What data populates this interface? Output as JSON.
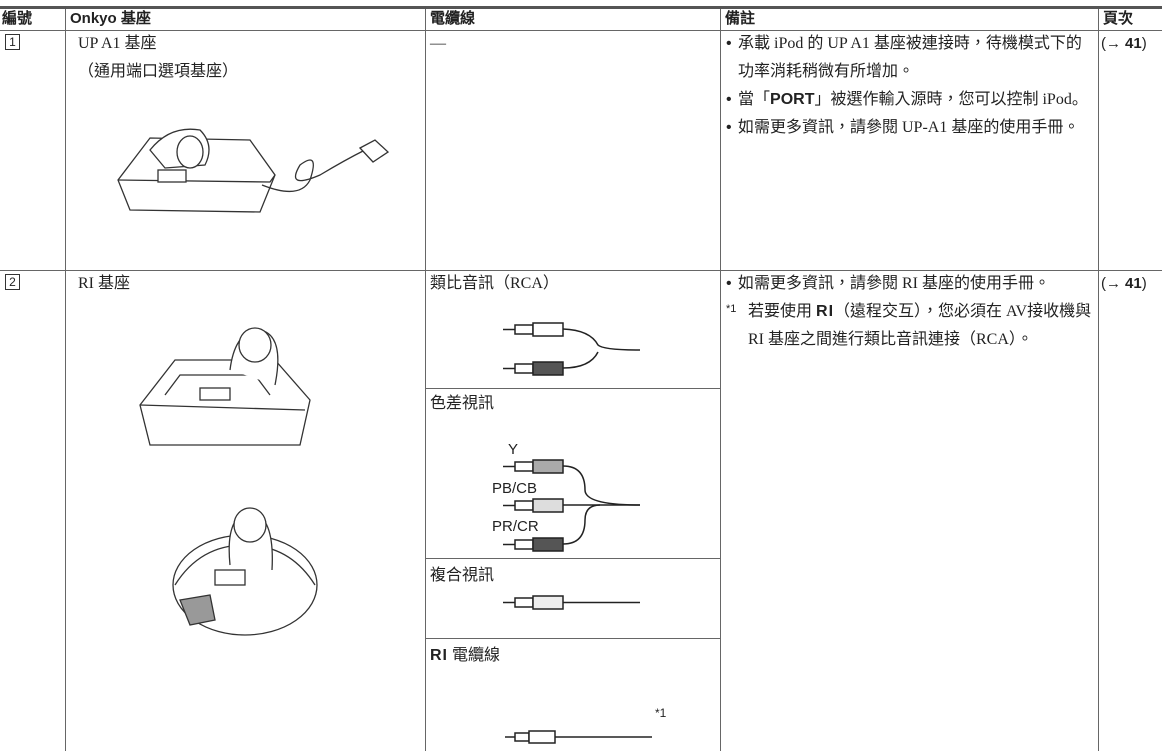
{
  "table": {
    "headers": [
      "編號",
      "Onkyo 基座",
      "電纜線",
      "備註",
      "頁次"
    ],
    "rows": [
      {
        "number": "1",
        "dock": [
          "UP A1 基座",
          "（通用端口選項基座）"
        ],
        "cable": "—",
        "notes": [
          [
            "承載 iPod 的 UP A1 基座被連接時，待機模式下的功率消耗稍微有所增加。"
          ],
          [
            "當「",
            {
              "text": "PORT",
              "style": "bold"
            },
            "」被選作輸入源時，您可以控制 iPod。"
          ],
          [
            "如需更多資訊，請參閱 UP-A1 基座的使用手冊。"
          ]
        ],
        "page_prefix": "(→",
        "page": "41",
        "page_suffix": ")"
      },
      {
        "number": "2",
        "dock": [
          "RI 基座"
        ],
        "cables": [
          {
            "label": "類比音訊（RCA）"
          },
          {
            "label": "色差視訊",
            "signals": [
              "Y",
              "PB/CB",
              "PR/CR"
            ]
          },
          {
            "label": "複合視訊"
          },
          {
            "logo": "RI",
            "label": "電纜線",
            "footnote": "*1"
          }
        ],
        "notes": [
          [
            "如需更多資訊，請參閱 RI 基座的使用手冊。"
          ]
        ],
        "footnote": {
          "marker": "*1",
          "parts": [
            "若要使用 ",
            {
              "text": "RI",
              "style": "logo"
            },
            "（遠程交互），您必須在 AV接收機與 RI 基座之間進行類比音訊連接（RCA）。"
          ]
        },
        "page_prefix": "(→",
        "page": "41",
        "page_suffix": ")"
      }
    ]
  }
}
